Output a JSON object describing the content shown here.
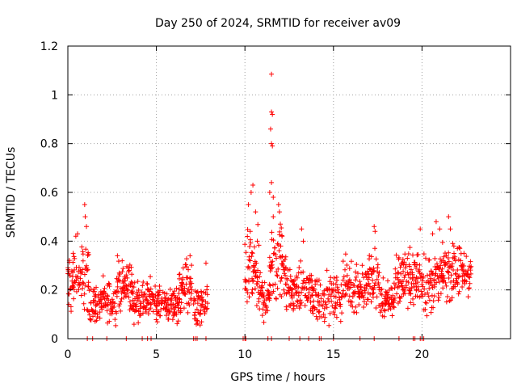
{
  "chart_data": {
    "type": "scatter",
    "title": "Day 250 of 2024, SRMTID for receiver av09",
    "xlabel": "GPS time / hours",
    "ylabel": "SRMTID / TECUs",
    "xlim": [
      0,
      25
    ],
    "ylim": [
      0,
      1.2
    ],
    "xticks": [
      0,
      5,
      10,
      15,
      20
    ],
    "yticks": [
      0,
      0.2,
      0.4,
      0.6,
      0.8,
      1,
      1.2
    ],
    "xtick_labels": [
      "0",
      "5",
      "10",
      "15",
      "20"
    ],
    "ytick_labels": [
      "0",
      "0.2",
      "0.4",
      "0.6",
      "0.8",
      "1",
      "1.2"
    ],
    "grid": true,
    "marker": "+",
    "color": "#ff0000",
    "series": [
      {
        "name": "SRMTID",
        "segments": [
          {
            "start": 0.0,
            "end": 1.2,
            "base": 0.24,
            "spread": 0.09,
            "step": 0.03
          },
          {
            "start": 1.2,
            "end": 2.7,
            "base": 0.15,
            "spread": 0.06,
            "step": 0.03
          },
          {
            "start": 2.7,
            "end": 3.6,
            "base": 0.22,
            "spread": 0.08,
            "step": 0.03
          },
          {
            "start": 3.6,
            "end": 5.0,
            "base": 0.16,
            "spread": 0.06,
            "step": 0.03
          },
          {
            "start": 5.0,
            "end": 6.3,
            "base": 0.14,
            "spread": 0.05,
            "step": 0.03
          },
          {
            "start": 6.3,
            "end": 7.0,
            "base": 0.22,
            "spread": 0.08,
            "step": 0.03
          },
          {
            "start": 7.1,
            "end": 7.9,
            "base": 0.13,
            "spread": 0.06,
            "step": 0.03
          },
          {
            "start": 10.0,
            "end": 10.8,
            "base": 0.28,
            "spread": 0.12,
            "step": 0.03
          },
          {
            "start": 10.8,
            "end": 11.4,
            "base": 0.17,
            "spread": 0.07,
            "step": 0.03
          },
          {
            "start": 11.4,
            "end": 12.3,
            "base": 0.3,
            "spread": 0.13,
            "step": 0.03
          },
          {
            "start": 12.3,
            "end": 13.8,
            "base": 0.2,
            "spread": 0.07,
            "step": 0.03
          },
          {
            "start": 13.8,
            "end": 15.5,
            "base": 0.17,
            "spread": 0.07,
            "step": 0.03
          },
          {
            "start": 15.5,
            "end": 17.0,
            "base": 0.21,
            "spread": 0.08,
            "step": 0.03
          },
          {
            "start": 17.0,
            "end": 17.6,
            "base": 0.25,
            "spread": 0.09,
            "step": 0.03
          },
          {
            "start": 17.6,
            "end": 18.5,
            "base": 0.16,
            "spread": 0.06,
            "step": 0.03
          },
          {
            "start": 18.5,
            "end": 20.0,
            "base": 0.25,
            "spread": 0.08,
            "step": 0.03
          },
          {
            "start": 20.0,
            "end": 21.0,
            "base": 0.23,
            "spread": 0.09,
            "step": 0.03
          },
          {
            "start": 21.0,
            "end": 22.8,
            "base": 0.27,
            "spread": 0.08,
            "step": 0.03
          }
        ],
        "points": [
          [
            0.3,
            0.35
          ],
          [
            0.45,
            0.42
          ],
          [
            0.55,
            0.43
          ],
          [
            0.95,
            0.55
          ],
          [
            0.98,
            0.5
          ],
          [
            1.05,
            0.46
          ],
          [
            2.8,
            0.34
          ],
          [
            6.9,
            0.34
          ],
          [
            7.8,
            0.31
          ],
          [
            10.2,
            0.55
          ],
          [
            10.35,
            0.6
          ],
          [
            10.45,
            0.63
          ],
          [
            10.6,
            0.52
          ],
          [
            10.3,
            0.44
          ],
          [
            10.7,
            0.4
          ],
          [
            11.5,
            1.085
          ],
          [
            11.5,
            0.93
          ],
          [
            11.55,
            0.92
          ],
          [
            11.45,
            0.86
          ],
          [
            11.5,
            0.8
          ],
          [
            11.55,
            0.79
          ],
          [
            11.5,
            0.64
          ],
          [
            11.4,
            0.6
          ],
          [
            11.6,
            0.58
          ],
          [
            11.9,
            0.55
          ],
          [
            11.95,
            0.52
          ],
          [
            12.0,
            0.47
          ],
          [
            12.1,
            0.42
          ],
          [
            11.6,
            0.5
          ],
          [
            13.2,
            0.45
          ],
          [
            13.3,
            0.4
          ],
          [
            14.1,
            0.08
          ],
          [
            17.3,
            0.46
          ],
          [
            17.35,
            0.44
          ],
          [
            19.9,
            0.45
          ],
          [
            20.8,
            0.48
          ],
          [
            21.0,
            0.45
          ],
          [
            21.5,
            0.5
          ],
          [
            21.6,
            0.45
          ],
          [
            20.6,
            0.43
          ],
          [
            21.8,
            0.38
          ],
          [
            22.0,
            0.37
          ]
        ],
        "zero_points": [
          1.1,
          1.4,
          2.2,
          3.3,
          4.2,
          4.5,
          4.7,
          7.1,
          7.2,
          7.3,
          7.8,
          9.9,
          10.0,
          10.05,
          11.3,
          11.5,
          12.5,
          13.1,
          13.6,
          14.2,
          14.3,
          15.0,
          16.5,
          17.3,
          18.7,
          19.5,
          19.6,
          19.9,
          20.0,
          20.1
        ]
      }
    ]
  }
}
